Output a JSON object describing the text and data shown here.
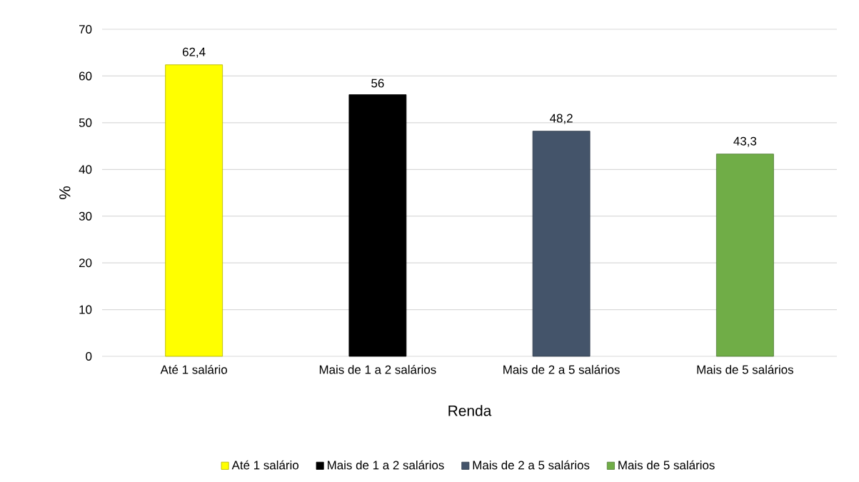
{
  "chart_data": {
    "type": "bar",
    "xlabel": "Renda",
    "ylabel": "%",
    "categories": [
      "Até 1 salário",
      "Mais de 1 a 2 salários",
      "Mais de 2 a 5 salários",
      "Mais de 5 salários"
    ],
    "series": [
      {
        "name": "Até 1 salário",
        "color": "#ffff00",
        "values": [
          62.4,
          null,
          null,
          null
        ],
        "value_labels": [
          "62,4",
          null,
          null,
          null
        ]
      },
      {
        "name": "Mais de 1 a 2 salários",
        "color": "#000000",
        "values": [
          null,
          56,
          null,
          null
        ],
        "value_labels": [
          null,
          "56",
          null,
          null
        ]
      },
      {
        "name": "Mais de 2 a 5 salários",
        "color": "#44546a",
        "values": [
          null,
          null,
          48.2,
          null
        ],
        "value_labels": [
          null,
          null,
          "48,2",
          null
        ]
      },
      {
        "name": "Mais de 5 salários",
        "color": "#70ad47",
        "values": [
          null,
          null,
          null,
          43.3
        ],
        "value_labels": [
          null,
          null,
          null,
          "43,3"
        ]
      }
    ],
    "ylim": [
      0,
      70
    ],
    "yticks": [
      0,
      10,
      20,
      30,
      40,
      50,
      60,
      70
    ],
    "grid": "y",
    "legend": "bottom"
  }
}
